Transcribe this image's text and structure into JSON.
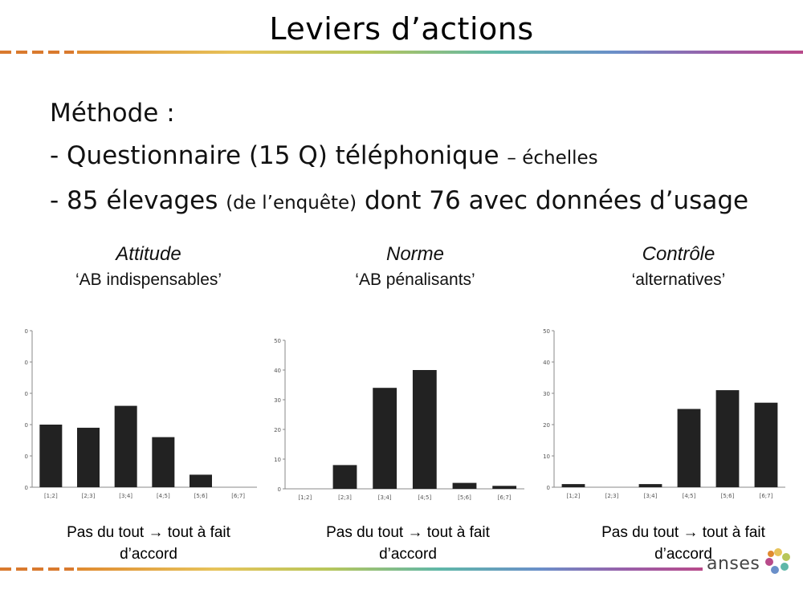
{
  "slide": {
    "title": "Leviers d’actions",
    "method_heading": "Méthode :",
    "line1_main": "- Questionnaire (15 Q) téléphonique",
    "line1_small": "– échelles",
    "line2_a": "- 85 élevages",
    "line2_small": "(de l’enquête)",
    "line2_b": "dont 76 avec données d’usage"
  },
  "panels": [
    {
      "title": "Attitude",
      "subtitle": "‘AB indispensables’",
      "caption_line1": "Pas du tout → tout à fait",
      "caption_line2": "d’accord"
    },
    {
      "title": "Norme",
      "subtitle": "‘AB pénalisants’",
      "caption_line1": "Pas du tout → tout à fait",
      "caption_line2": "d’accord"
    },
    {
      "title": "Contrôle",
      "subtitle": "‘alternatives’",
      "caption_line1": "Pas du tout → tout à fait",
      "caption_line2": "d’accord"
    }
  ],
  "logo": {
    "text": "anses"
  },
  "colors": {
    "bar": "#222222",
    "axis": "#888888",
    "accent_orange": "#d97a2e"
  },
  "chart_data": [
    {
      "type": "bar",
      "categories": [
        "[1;2]",
        "[2;3]",
        "[3;4]",
        "[4;5]",
        "[5;6]",
        "[6;7]"
      ],
      "values": [
        20,
        19,
        26,
        16,
        4,
        0
      ],
      "ylim": [
        0,
        50
      ],
      "yticks": [
        0,
        10,
        20,
        30,
        40,
        50
      ],
      "grid": false
    },
    {
      "type": "bar",
      "categories": [
        "[1;2]",
        "[2;3]",
        "[3;4]",
        "[4;5]",
        "[5;6]",
        "[6;7]"
      ],
      "values": [
        0,
        8,
        34,
        40,
        2,
        1
      ],
      "ylim": [
        0,
        50
      ],
      "yticks": [
        0,
        10,
        20,
        30,
        40,
        50
      ],
      "grid": false
    },
    {
      "type": "bar",
      "categories": [
        "[1;2]",
        "[2;3]",
        "[3;4]",
        "[4;5]",
        "[5;6]",
        "[6;7]"
      ],
      "values": [
        1,
        0,
        1,
        25,
        31,
        27
      ],
      "ylim": [
        0,
        50
      ],
      "yticks": [
        0,
        10,
        20,
        30,
        40,
        50
      ],
      "grid": false
    }
  ]
}
